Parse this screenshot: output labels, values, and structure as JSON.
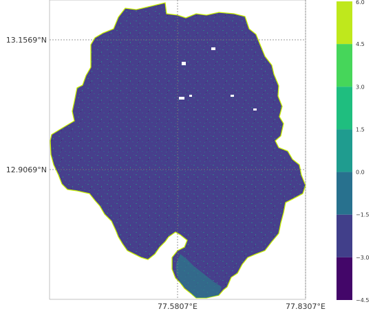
{
  "map": {
    "lat_labels": [
      "13.1569°N",
      "12.9069°N"
    ],
    "lon_labels": [
      "77.5807°E",
      "77.8307°E"
    ],
    "colors": {
      "boundary": "#c8f000",
      "fill_main": "#473f8c",
      "fill_teal": "#2a7f8a",
      "gridline": "#7a7a7a"
    }
  },
  "colorbar": {
    "tick_labels": [
      "6.0",
      "4.5",
      "3.0",
      "1.5",
      "0.0",
      "−1.5",
      "−3.0",
      "−4.5"
    ],
    "bins": [
      {
        "min": 4.5,
        "max": 6.0,
        "color": "#bfe81c"
      },
      {
        "min": 3.0,
        "max": 4.5,
        "color": "#46d65a"
      },
      {
        "min": 1.5,
        "max": 3.0,
        "color": "#1fbe7f"
      },
      {
        "min": 0.0,
        "max": 1.5,
        "color": "#1f9c8f"
      },
      {
        "min": -1.5,
        "max": 0.0,
        "color": "#28718e"
      },
      {
        "min": -3.0,
        "max": -1.5,
        "color": "#413f8a"
      },
      {
        "min": -4.5,
        "max": -3.0,
        "color": "#430669"
      }
    ]
  }
}
